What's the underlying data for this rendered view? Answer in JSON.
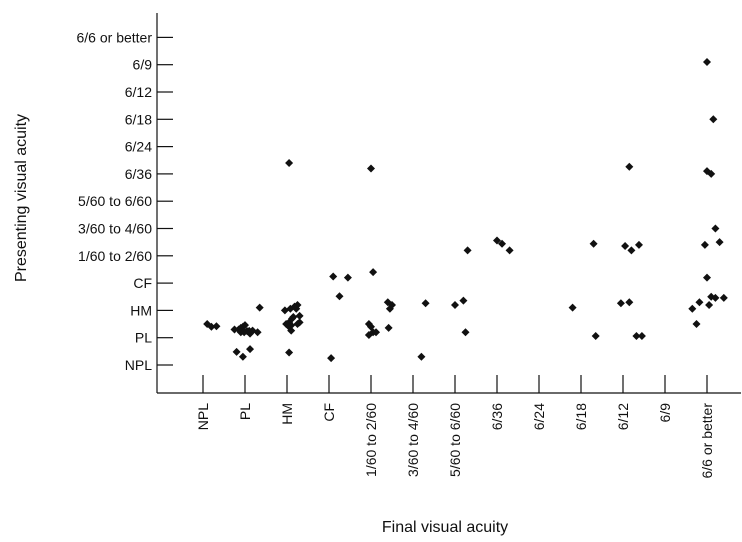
{
  "chart_data": {
    "type": "scatter",
    "title": "",
    "xlabel": "Final visual acuity",
    "ylabel": "Presenting visual acuity",
    "x_categories": [
      "NPL",
      "PL",
      "HM",
      "CF",
      "1/60 to 2/60",
      "3/60 to 4/60",
      "5/60 to 6/60",
      "6/36",
      "6/24",
      "6/18",
      "6/12",
      "6/9",
      "6/6 or better"
    ],
    "y_categories": [
      "NPL",
      "PL",
      "HM",
      "CF",
      "1/60 to 2/60",
      "3/60 to 4/60",
      "5/60 to 6/60",
      "6/36",
      "6/24",
      "6/18",
      "6/12",
      "6/9",
      "6/6 or better"
    ],
    "marker_color": "#111111",
    "points": [
      {
        "x": 0.1,
        "y": 1.5
      },
      {
        "x": 0.2,
        "y": 1.4
      },
      {
        "x": 0.32,
        "y": 1.42
      },
      {
        "x": 0.75,
        "y": 1.3
      },
      {
        "x": 0.85,
        "y": 1.3
      },
      {
        "x": 0.9,
        "y": 1.36
      },
      {
        "x": 0.95,
        "y": 1.4
      },
      {
        "x": 1.0,
        "y": 1.46
      },
      {
        "x": 0.9,
        "y": 1.2
      },
      {
        "x": 0.98,
        "y": 1.2
      },
      {
        "x": 1.05,
        "y": 1.24
      },
      {
        "x": 1.12,
        "y": 1.15
      },
      {
        "x": 1.1,
        "y": 1.25
      },
      {
        "x": 1.18,
        "y": 1.26
      },
      {
        "x": 1.3,
        "y": 1.2
      },
      {
        "x": 0.8,
        "y": 0.48
      },
      {
        "x": 0.95,
        "y": 0.3
      },
      {
        "x": 1.12,
        "y": 0.58
      },
      {
        "x": 1.35,
        "y": 2.1
      },
      {
        "x": 2.05,
        "y": 7.4
      },
      {
        "x": 1.95,
        "y": 2.0
      },
      {
        "x": 2.08,
        "y": 2.06
      },
      {
        "x": 2.18,
        "y": 2.14
      },
      {
        "x": 2.22,
        "y": 2.06
      },
      {
        "x": 2.15,
        "y": 1.76
      },
      {
        "x": 2.05,
        "y": 1.56
      },
      {
        "x": 1.98,
        "y": 1.5
      },
      {
        "x": 2.1,
        "y": 1.45
      },
      {
        "x": 2.25,
        "y": 1.5
      },
      {
        "x": 2.3,
        "y": 1.56
      },
      {
        "x": 2.3,
        "y": 1.8
      },
      {
        "x": 2.1,
        "y": 1.26
      },
      {
        "x": 2.05,
        "y": 0.46
      },
      {
        "x": 2.05,
        "y": 1.4
      },
      {
        "x": 2.12,
        "y": 1.7
      },
      {
        "x": 2.25,
        "y": 2.2
      },
      {
        "x": 3.1,
        "y": 3.24
      },
      {
        "x": 3.45,
        "y": 3.2
      },
      {
        "x": 3.25,
        "y": 2.52
      },
      {
        "x": 3.05,
        "y": 0.25
      },
      {
        "x": 4.0,
        "y": 7.2
      },
      {
        "x": 4.05,
        "y": 3.4
      },
      {
        "x": 4.4,
        "y": 2.3
      },
      {
        "x": 4.45,
        "y": 2.06
      },
      {
        "x": 4.5,
        "y": 2.2
      },
      {
        "x": 3.95,
        "y": 1.5
      },
      {
        "x": 4.0,
        "y": 1.4
      },
      {
        "x": 4.05,
        "y": 1.2
      },
      {
        "x": 3.95,
        "y": 1.1
      },
      {
        "x": 4.12,
        "y": 1.2
      },
      {
        "x": 4.42,
        "y": 1.36
      },
      {
        "x": 5.2,
        "y": 0.3
      },
      {
        "x": 5.3,
        "y": 2.26
      },
      {
        "x": 6.0,
        "y": 2.2
      },
      {
        "x": 6.2,
        "y": 2.36
      },
      {
        "x": 6.25,
        "y": 1.2
      },
      {
        "x": 6.3,
        "y": 4.2
      },
      {
        "x": 7.0,
        "y": 4.56
      },
      {
        "x": 7.12,
        "y": 4.44
      },
      {
        "x": 7.3,
        "y": 4.2
      },
      {
        "x": 8.8,
        "y": 2.1
      },
      {
        "x": 9.3,
        "y": 4.44
      },
      {
        "x": 9.35,
        "y": 1.06
      },
      {
        "x": 9.95,
        "y": 2.26
      },
      {
        "x": 10.05,
        "y": 4.36
      },
      {
        "x": 10.2,
        "y": 4.2
      },
      {
        "x": 10.15,
        "y": 2.3
      },
      {
        "x": 10.38,
        "y": 4.4
      },
      {
        "x": 10.15,
        "y": 7.26
      },
      {
        "x": 10.32,
        "y": 1.06
      },
      {
        "x": 10.45,
        "y": 1.06
      },
      {
        "x": 11.65,
        "y": 2.06
      },
      {
        "x": 11.75,
        "y": 1.5
      },
      {
        "x": 11.82,
        "y": 2.3
      },
      {
        "x": 12.0,
        "y": 11.1
      },
      {
        "x": 12.15,
        "y": 9.0
      },
      {
        "x": 12.0,
        "y": 7.1
      },
      {
        "x": 12.1,
        "y": 7.0
      },
      {
        "x": 12.2,
        "y": 5.0
      },
      {
        "x": 12.3,
        "y": 4.5
      },
      {
        "x": 11.95,
        "y": 4.4
      },
      {
        "x": 12.0,
        "y": 3.2
      },
      {
        "x": 12.1,
        "y": 2.5
      },
      {
        "x": 12.2,
        "y": 2.46
      },
      {
        "x": 12.05,
        "y": 2.2
      },
      {
        "x": 12.4,
        "y": 2.46
      }
    ]
  }
}
